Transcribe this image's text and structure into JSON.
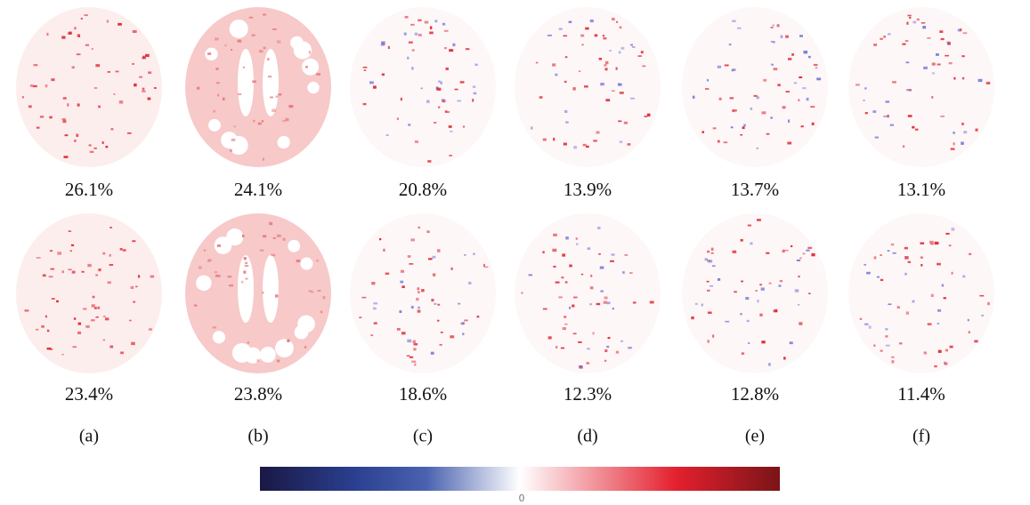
{
  "rows": [
    {
      "captions": [
        "26.1%",
        "24.1%",
        "20.8%",
        "13.9%",
        "13.7%",
        "13.1%"
      ]
    },
    {
      "captions": [
        "23.4%",
        "23.8%",
        "18.6%",
        "12.3%",
        "12.8%",
        "11.4%"
      ]
    }
  ],
  "columns": [
    "(a)",
    "(b)",
    "(c)",
    "(d)",
    "(e)",
    "(f)"
  ],
  "colorbar": {
    "label": "0"
  }
}
